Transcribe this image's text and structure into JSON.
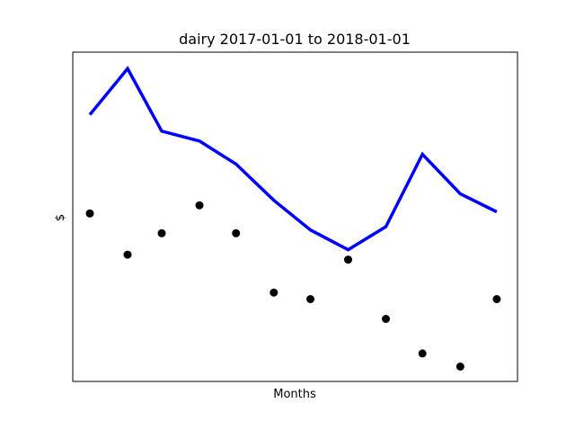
{
  "chart_data": {
    "type": "line",
    "title": "dairy 2017-01-01 to 2018-01-01",
    "xlabel": "Months",
    "ylabel": "$",
    "xlim": [
      "2017-01-01",
      "2018-01-01"
    ],
    "ylim": [
      0,
      100
    ],
    "x_ticks_shown": false,
    "y_ticks_shown": false,
    "grid": false,
    "legend": "none",
    "series": [
      {
        "kind": "line",
        "color": "#0000ff",
        "x": [
          "2017-01-15",
          "2017-02-15",
          "2017-03-15",
          "2017-04-15",
          "2017-05-15",
          "2017-06-15",
          "2017-07-15",
          "2017-08-15",
          "2017-09-15",
          "2017-10-15",
          "2017-11-15",
          "2017-12-15"
        ],
        "values": [
          81,
          95,
          76,
          73,
          66,
          55,
          46,
          40,
          47,
          69,
          57,
          51.5
        ]
      },
      {
        "kind": "scatter",
        "color": "#000000",
        "x": [
          "2017-01-15",
          "2017-02-15",
          "2017-03-15",
          "2017-04-15",
          "2017-05-15",
          "2017-06-15",
          "2017-07-15",
          "2017-08-15",
          "2017-09-15",
          "2017-10-15",
          "2017-11-15",
          "2017-12-15"
        ],
        "values": [
          51,
          38.5,
          45,
          53.5,
          45,
          27,
          25,
          37,
          19,
          8.5,
          4.5,
          25
        ]
      }
    ]
  }
}
